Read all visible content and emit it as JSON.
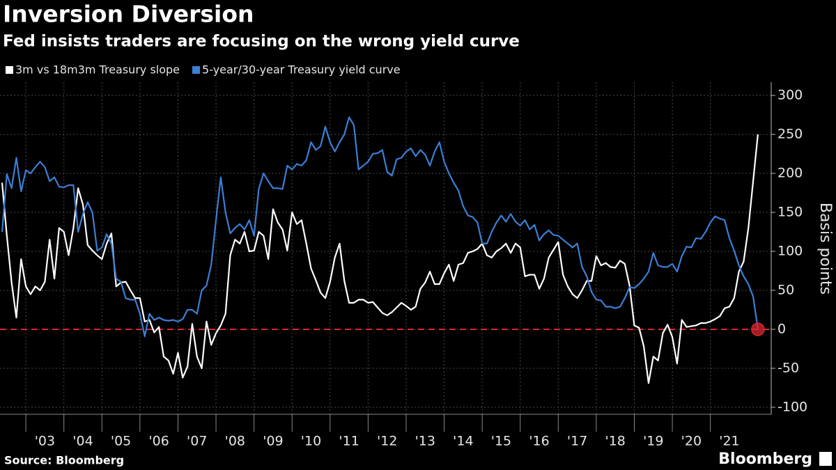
{
  "chart_data": {
    "type": "line",
    "title": "Inversion Diversion",
    "subtitle": "Fed insists traders are focusing on the wrong yield curve",
    "y_label": "Basis points",
    "source": "Source: Bloomberg",
    "brand": "Bloomberg",
    "grid": true,
    "y_axis_side": "right",
    "reference_line": {
      "value": 0,
      "color": "#d9272e"
    },
    "xlim": [
      2002.32,
      2022.6
    ],
    "ylim": [
      -109,
      317
    ],
    "yticks": [
      -100,
      -50,
      0,
      50,
      100,
      150,
      200,
      250,
      300
    ],
    "xticks": [
      {
        "value": 2003,
        "label": "'03"
      },
      {
        "value": 2004,
        "label": "'04"
      },
      {
        "value": 2005,
        "label": "'05"
      },
      {
        "value": 2006,
        "label": "'06"
      },
      {
        "value": 2007,
        "label": "'07"
      },
      {
        "value": 2008,
        "label": "'08"
      },
      {
        "value": 2009,
        "label": "'09"
      },
      {
        "value": 2010,
        "label": "'10"
      },
      {
        "value": 2011,
        "label": "'11"
      },
      {
        "value": 2012,
        "label": "'12"
      },
      {
        "value": 2013,
        "label": "'13"
      },
      {
        "value": 2014,
        "label": "'14"
      },
      {
        "value": 2015,
        "label": "'15"
      },
      {
        "value": 2016,
        "label": "'16"
      },
      {
        "value": 2017,
        "label": "'17"
      },
      {
        "value": 2018,
        "label": "'18"
      },
      {
        "value": 2019,
        "label": "'19"
      },
      {
        "value": 2020,
        "label": "'20"
      },
      {
        "value": 2021,
        "label": "'21"
      }
    ],
    "x": [
      2002.375,
      2002.5,
      2002.625,
      2002.75,
      2002.875,
      2003,
      2003.125,
      2003.25,
      2003.375,
      2003.5,
      2003.625,
      2003.75,
      2003.875,
      2004,
      2004.125,
      2004.25,
      2004.375,
      2004.5,
      2004.625,
      2004.75,
      2004.875,
      2005,
      2005.125,
      2005.25,
      2005.375,
      2005.5,
      2005.625,
      2005.75,
      2005.875,
      2006,
      2006.125,
      2006.25,
      2006.375,
      2006.5,
      2006.625,
      2006.75,
      2006.875,
      2007,
      2007.125,
      2007.25,
      2007.375,
      2007.5,
      2007.625,
      2007.75,
      2007.875,
      2008,
      2008.125,
      2008.25,
      2008.375,
      2008.5,
      2008.625,
      2008.75,
      2008.875,
      2009,
      2009.125,
      2009.25,
      2009.375,
      2009.5,
      2009.625,
      2009.75,
      2009.875,
      2010,
      2010.125,
      2010.25,
      2010.375,
      2010.5,
      2010.625,
      2010.75,
      2010.875,
      2011,
      2011.125,
      2011.25,
      2011.375,
      2011.5,
      2011.625,
      2011.75,
      2011.875,
      2012,
      2012.125,
      2012.25,
      2012.375,
      2012.5,
      2012.625,
      2012.75,
      2012.875,
      2013,
      2013.125,
      2013.25,
      2013.375,
      2013.5,
      2013.625,
      2013.75,
      2013.875,
      2014,
      2014.125,
      2014.25,
      2014.375,
      2014.5,
      2014.625,
      2014.75,
      2014.875,
      2015,
      2015.125,
      2015.25,
      2015.375,
      2015.5,
      2015.625,
      2015.75,
      2015.875,
      2016,
      2016.125,
      2016.25,
      2016.375,
      2016.5,
      2016.625,
      2016.75,
      2016.875,
      2017,
      2017.125,
      2017.25,
      2017.375,
      2017.5,
      2017.625,
      2017.75,
      2017.875,
      2018,
      2018.125,
      2018.25,
      2018.375,
      2018.5,
      2018.625,
      2018.75,
      2018.875,
      2019,
      2019.125,
      2019.25,
      2019.375,
      2019.5,
      2019.625,
      2019.75,
      2019.875,
      2020,
      2020.125,
      2020.25,
      2020.375,
      2020.5,
      2020.625,
      2020.75,
      2020.875,
      2021,
      2021.125,
      2021.25,
      2021.375,
      2021.5,
      2021.625,
      2021.75,
      2021.875,
      2022,
      2022.125,
      2022.25
    ],
    "series": [
      {
        "name": "3m vs 18m3m Treasury slope",
        "color": "#ffffff",
        "values": [
          188,
          120,
          60,
          15,
          90,
          55,
          45,
          55,
          50,
          61,
          115,
          65,
          130,
          125,
          95,
          130,
          181,
          160,
          108,
          101,
          95,
          90,
          110,
          123,
          55,
          60,
          61,
          50,
          40,
          40,
          10,
          12,
          -4,
          3,
          -35,
          -40,
          -57,
          -30,
          -62,
          -48,
          7,
          -35,
          -50,
          10,
          -20,
          -5,
          5,
          20,
          95,
          115,
          110,
          125,
          100,
          101,
          125,
          120,
          90,
          154,
          137,
          128,
          101,
          150,
          135,
          140,
          110,
          78,
          63,
          47,
          40,
          61,
          92,
          110,
          62,
          34,
          34,
          38,
          38,
          34,
          35,
          28,
          21,
          18,
          22,
          28,
          34,
          30,
          25,
          29,
          52,
          60,
          74,
          58,
          58,
          72,
          83,
          62,
          83,
          85,
          98,
          100,
          103,
          110,
          95,
          92,
          100,
          104,
          110,
          98,
          110,
          105,
          68,
          70,
          70,
          52,
          65,
          92,
          102,
          112,
          70,
          55,
          45,
          40,
          50,
          62,
          62,
          94,
          82,
          85,
          80,
          79,
          88,
          84,
          56,
          5,
          2,
          -22,
          -69,
          -35,
          -40,
          -5,
          6,
          -10,
          -44,
          12,
          3,
          4,
          5,
          8,
          8,
          10,
          13,
          17,
          27,
          29,
          40,
          74,
          87,
          130,
          190,
          250
        ]
      },
      {
        "name": "5-year/30-year Treasury yield curve",
        "color": "#3c7fd6",
        "end_marker_color": "#d9272e",
        "values": [
          125,
          199,
          181,
          220,
          177,
          204,
          200,
          208,
          215,
          208,
          190,
          195,
          183,
          182,
          185,
          185,
          125,
          148,
          163,
          150,
          101,
          105,
          122,
          110,
          65,
          61,
          40,
          38,
          38,
          20,
          -9,
          20,
          12,
          15,
          12,
          11,
          12,
          10,
          13,
          25,
          25,
          20,
          50,
          56,
          83,
          140,
          195,
          150,
          123,
          130,
          135,
          128,
          140,
          120,
          180,
          200,
          190,
          181,
          181,
          180,
          210,
          205,
          212,
          210,
          217,
          240,
          230,
          235,
          260,
          240,
          228,
          240,
          250,
          272,
          262,
          205,
          210,
          215,
          225,
          226,
          230,
          202,
          197,
          218,
          220,
          228,
          232,
          222,
          230,
          224,
          210,
          228,
          240,
          215,
          200,
          188,
          178,
          158,
          146,
          144,
          137,
          110,
          110,
          125,
          137,
          146,
          138,
          148,
          138,
          133,
          140,
          128,
          134,
          114,
          122,
          127,
          121,
          120,
          115,
          110,
          105,
          110,
          80,
          68,
          48,
          38,
          37,
          29,
          29,
          27,
          29,
          40,
          54,
          53,
          58,
          65,
          74,
          98,
          82,
          80,
          80,
          84,
          74,
          94,
          106,
          105,
          117,
          116,
          125,
          137,
          145,
          142,
          140,
          117,
          101,
          82,
          68,
          58,
          42,
          0
        ]
      }
    ]
  }
}
